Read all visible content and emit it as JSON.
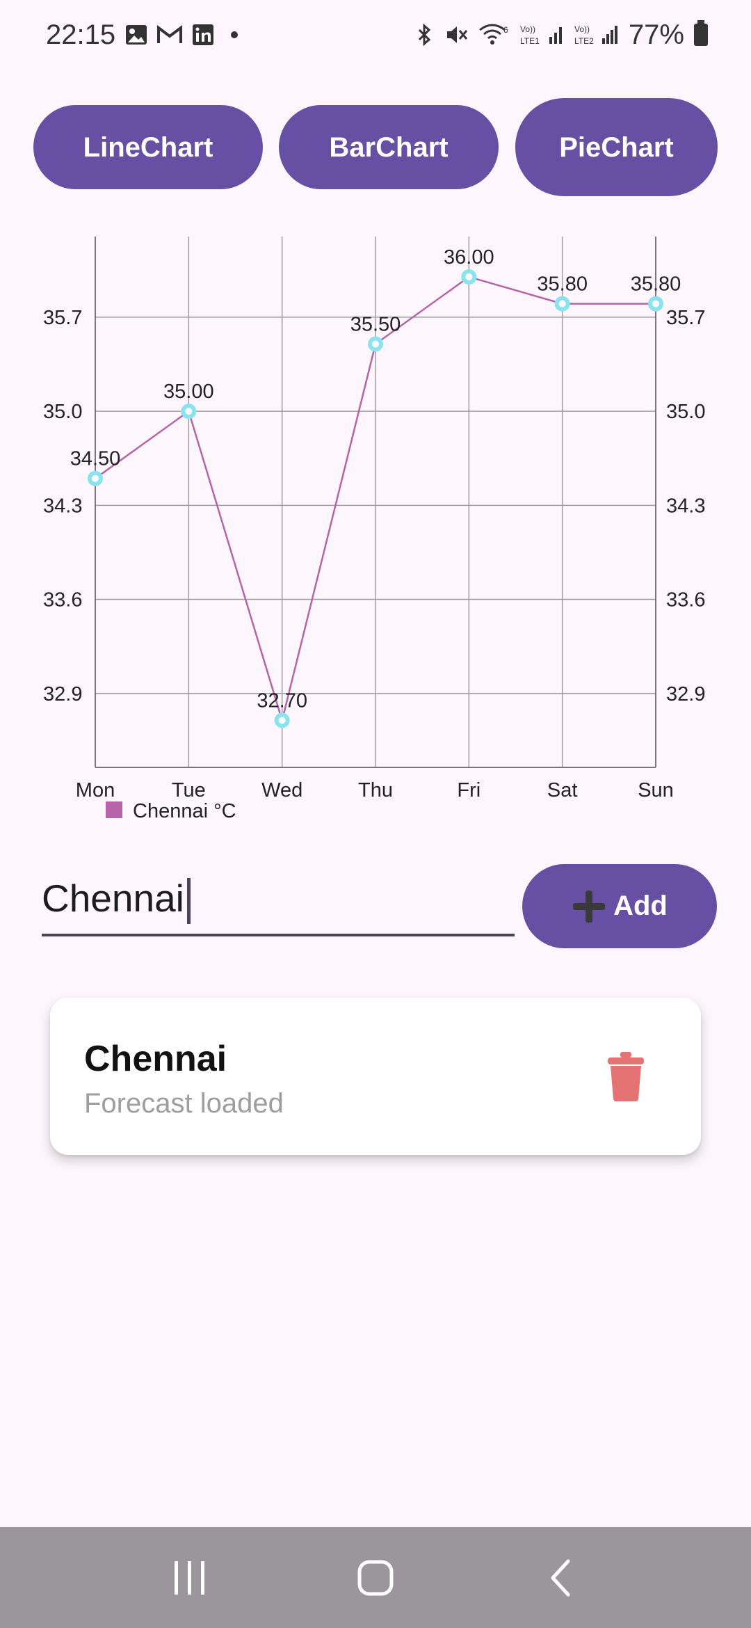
{
  "status_bar": {
    "time": "22:15",
    "left_icons": [
      "image-icon",
      "gmail-icon",
      "linkedin-icon",
      "dot-icon"
    ],
    "right_icons": [
      "bluetooth-icon",
      "mute-icon",
      "wifi-icon",
      "signal-lte1-icon",
      "signal-lte2-icon"
    ],
    "battery": "77%"
  },
  "chart_buttons": {
    "line": "LineChart",
    "bar": "BarChart",
    "pie": "PieChart"
  },
  "chart_data": {
    "type": "line",
    "categories": [
      "Mon",
      "Tue",
      "Wed",
      "Thu",
      "Fri",
      "Sat",
      "Sun"
    ],
    "series": [
      {
        "name": "Chennai °C",
        "values": [
          34.5,
          35.0,
          32.7,
          35.5,
          36.0,
          35.8,
          35.8
        ],
        "labels": [
          "34.50",
          "35.00",
          "32.70",
          "35.50",
          "36.00",
          "35.80",
          "35.80"
        ],
        "color": "#b565a7",
        "marker_color": "#8be3ef"
      }
    ],
    "y_ticks": [
      "32.9",
      "33.6",
      "34.3",
      "35.0",
      "35.7"
    ],
    "y_tick_values": [
      32.9,
      33.6,
      34.3,
      35.0,
      35.7
    ],
    "ylim": [
      32.35,
      36.3
    ],
    "dual_y_axis": true,
    "grid": true,
    "legend": "bottom-left"
  },
  "input": {
    "value": "Chennai",
    "add_label": "Add"
  },
  "city_card": {
    "name": "Chennai",
    "status": "Forecast loaded",
    "delete_color": "#e57373"
  }
}
